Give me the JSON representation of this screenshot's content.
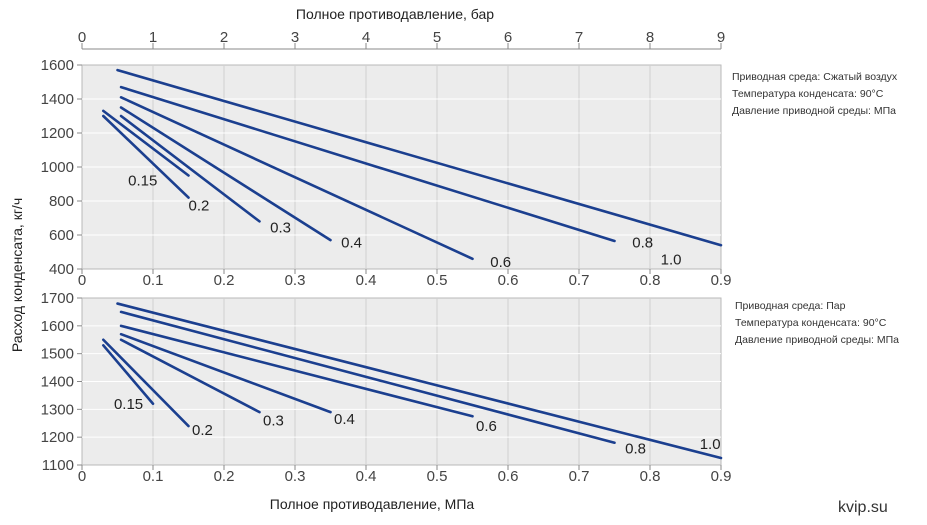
{
  "top_axis_label": "Полное противодавление, бар",
  "top_axis_ticks": [
    "0",
    "1",
    "2",
    "3",
    "4",
    "5",
    "6",
    "7",
    "8",
    "9"
  ],
  "y_axis_label": "Расход конденсата, кг/ч",
  "x_axis_label": "Полное противодавление, МПа",
  "watermark": "kvip.su",
  "chart_data": [
    {
      "type": "line",
      "title": "",
      "xlabel": "Полное противодавление, МПа",
      "ylabel": "Расход конденсата, кг/ч",
      "xlim": [
        0,
        0.9
      ],
      "ylim": [
        400,
        1600
      ],
      "x_ticks": [
        "0",
        "0.1",
        "0.2",
        "0.3",
        "0.4",
        "0.5",
        "0.6",
        "0.7",
        "0.8",
        "0.9"
      ],
      "y_ticks": [
        "400",
        "600",
        "800",
        "1000",
        "1200",
        "1400",
        "1600"
      ],
      "x_tick_values": [
        0,
        0.1,
        0.2,
        0.3,
        0.4,
        0.5,
        0.6,
        0.7,
        0.8,
        0.9
      ],
      "y_tick_values": [
        400,
        600,
        800,
        1000,
        1200,
        1400,
        1600
      ],
      "legend": [
        "Приводная среда: Сжатый воздух",
        "Температура конденсата: 90°C",
        "Давление приводной среды: МПа"
      ],
      "series": [
        {
          "label": "0.15",
          "x": [
            0.03,
            0.15
          ],
          "y": [
            1330,
            950
          ],
          "label_at": [
            0.065,
            920
          ]
        },
        {
          "label": "0.2",
          "x": [
            0.03,
            0.15
          ],
          "y": [
            1300,
            820
          ],
          "label_at": [
            0.15,
            775
          ]
        },
        {
          "label": "0.3",
          "x": [
            0.055,
            0.25
          ],
          "y": [
            1300,
            680
          ],
          "label_at": [
            0.265,
            645
          ]
        },
        {
          "label": "0.4",
          "x": [
            0.055,
            0.35
          ],
          "y": [
            1350,
            570
          ],
          "label_at": [
            0.365,
            555
          ]
        },
        {
          "label": "0.6",
          "x": [
            0.055,
            0.55
          ],
          "y": [
            1410,
            460
          ],
          "label_at": [
            0.575,
            440
          ]
        },
        {
          "label": "0.8",
          "x": [
            0.055,
            0.75
          ],
          "y": [
            1470,
            565
          ],
          "label_at": [
            0.775,
            555
          ]
        },
        {
          "label": "1.0",
          "x": [
            0.05,
            0.9
          ],
          "y": [
            1570,
            540
          ],
          "label_at": [
            0.815,
            455
          ]
        }
      ]
    },
    {
      "type": "line",
      "title": "",
      "xlabel": "Полное противодавление, МПа",
      "ylabel": "Расход конденсата, кг/ч",
      "xlim": [
        0,
        0.9
      ],
      "ylim": [
        1100,
        1700
      ],
      "x_ticks": [
        "0",
        "0.1",
        "0.2",
        "0.3",
        "0.4",
        "0.5",
        "0.6",
        "0.7",
        "0.8",
        "0.9"
      ],
      "y_ticks": [
        "1100",
        "1200",
        "1300",
        "1400",
        "1500",
        "1600",
        "1700"
      ],
      "x_tick_values": [
        0,
        0.1,
        0.2,
        0.3,
        0.4,
        0.5,
        0.6,
        0.7,
        0.8,
        0.9
      ],
      "y_tick_values": [
        1100,
        1200,
        1300,
        1400,
        1500,
        1600,
        1700
      ],
      "legend": [
        "Приводная среда: Пар",
        "Температура конденсата: 90°C",
        "Давление приводной среды: МПа"
      ],
      "series": [
        {
          "label": "0.15",
          "x": [
            0.03,
            0.1
          ],
          "y": [
            1530,
            1320
          ],
          "label_at": [
            0.045,
            1320
          ]
        },
        {
          "label": "0.2",
          "x": [
            0.03,
            0.15
          ],
          "y": [
            1550,
            1240
          ],
          "label_at": [
            0.155,
            1225
          ]
        },
        {
          "label": "0.3",
          "x": [
            0.055,
            0.25
          ],
          "y": [
            1550,
            1290
          ],
          "label_at": [
            0.255,
            1260
          ]
        },
        {
          "label": "0.4",
          "x": [
            0.055,
            0.35
          ],
          "y": [
            1570,
            1290
          ],
          "label_at": [
            0.355,
            1265
          ]
        },
        {
          "label": "0.6",
          "x": [
            0.055,
            0.55
          ],
          "y": [
            1600,
            1275
          ],
          "label_at": [
            0.555,
            1240
          ]
        },
        {
          "label": "0.8",
          "x": [
            0.055,
            0.75
          ],
          "y": [
            1650,
            1180
          ],
          "label_at": [
            0.765,
            1160
          ]
        },
        {
          "label": "1.0",
          "x": [
            0.05,
            0.9
          ],
          "y": [
            1680,
            1125
          ],
          "label_at": [
            0.87,
            1175
          ]
        }
      ]
    }
  ]
}
